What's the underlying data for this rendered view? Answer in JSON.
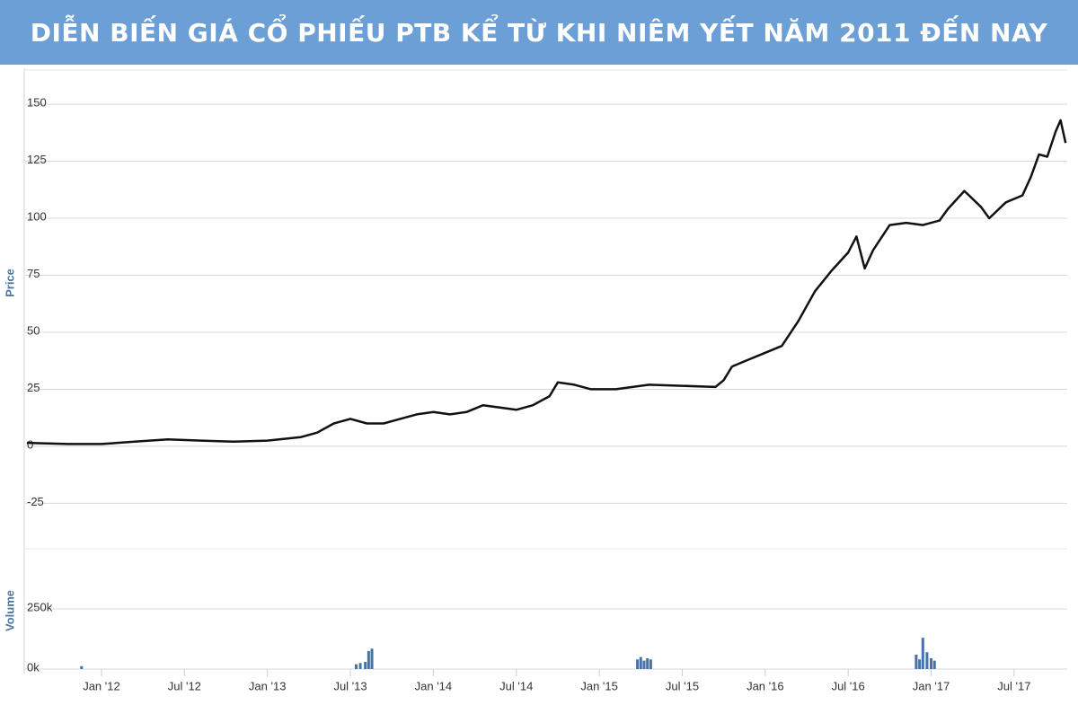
{
  "chart_data": [
    {
      "type": "line",
      "title": "DIỄN BIẾN GIÁ CỔ PHIẾU PTB KỂ TỪ KHI NIÊM YẾT NĂM 2011 ĐẾN NAY",
      "y_label": "Price",
      "color": "#111111",
      "x": [
        2011.55,
        2011.8,
        2012.0,
        2012.2,
        2012.4,
        2012.6,
        2012.8,
        2013.0,
        2013.2,
        2013.3,
        2013.4,
        2013.5,
        2013.6,
        2013.7,
        2013.8,
        2013.9,
        2014.0,
        2014.1,
        2014.2,
        2014.3,
        2014.4,
        2014.5,
        2014.6,
        2014.7,
        2014.75,
        2014.85,
        2014.95,
        2015.1,
        2015.2,
        2015.3,
        2015.5,
        2015.7,
        2015.75,
        2015.8,
        2015.9,
        2016.0,
        2016.1,
        2016.2,
        2016.3,
        2016.4,
        2016.5,
        2016.55,
        2016.6,
        2016.65,
        2016.75,
        2016.85,
        2016.95,
        2017.05,
        2017.1,
        2017.2,
        2017.3,
        2017.35,
        2017.45,
        2017.55,
        2017.6,
        2017.65,
        2017.7,
        2017.75,
        2017.78,
        2017.81
      ],
      "values": [
        1.5,
        1,
        1,
        2,
        3,
        2.5,
        2,
        2.5,
        4,
        6,
        10,
        12,
        10,
        10,
        12,
        14,
        15,
        14,
        15,
        18,
        17,
        16,
        18,
        22,
        28,
        27,
        25,
        25,
        26,
        27,
        26.5,
        26,
        29,
        35,
        38,
        41,
        44,
        55,
        68,
        77,
        85,
        92,
        78,
        86,
        97,
        98,
        97,
        99,
        104,
        112,
        105,
        100,
        107,
        110,
        118,
        128,
        127,
        138,
        143,
        133
      ],
      "xlim": [
        2011.54,
        2017.82
      ],
      "ylim": [
        -28,
        165
      ],
      "yticks": [
        -25,
        0,
        25,
        50,
        75,
        100,
        125,
        150
      ],
      "grid": true
    },
    {
      "type": "bar",
      "y_label": "Volume",
      "color": "#4572a7",
      "x": [
        2011.88,
        2013.535,
        2013.56,
        2013.59,
        2013.61,
        2013.63,
        2015.23,
        2015.25,
        2015.27,
        2015.29,
        2015.31,
        2016.91,
        2016.93,
        2016.95,
        2016.975,
        2017.0,
        2017.02
      ],
      "values": [
        12000,
        20000,
        25000,
        30000,
        75000,
        85000,
        40000,
        50000,
        35000,
        45000,
        40000,
        60000,
        40000,
        130000,
        70000,
        45000,
        35000
      ],
      "xlim": [
        2011.54,
        2017.82
      ],
      "ylim": [
        0,
        500000
      ],
      "yticks": [
        {
          "value": 0,
          "label": "0k"
        },
        {
          "value": 250000,
          "label": "250k"
        }
      ],
      "xticks": [
        {
          "value": 2012,
          "label": "Jan '12"
        },
        {
          "value": 2012.5,
          "label": "Jul '12"
        },
        {
          "value": 2013,
          "label": "Jan '13"
        },
        {
          "value": 2013.5,
          "label": "Jul '13"
        },
        {
          "value": 2014,
          "label": "Jan '14"
        },
        {
          "value": 2014.5,
          "label": "Jul '14"
        },
        {
          "value": 2015,
          "label": "Jan '15"
        },
        {
          "value": 2015.5,
          "label": "Jul '15"
        },
        {
          "value": 2016,
          "label": "Jan '16"
        },
        {
          "value": 2016.5,
          "label": "Jul '16"
        },
        {
          "value": 2017,
          "label": "Jan '17"
        },
        {
          "value": 2017.5,
          "label": "Jul '17"
        }
      ],
      "grid": true
    }
  ]
}
